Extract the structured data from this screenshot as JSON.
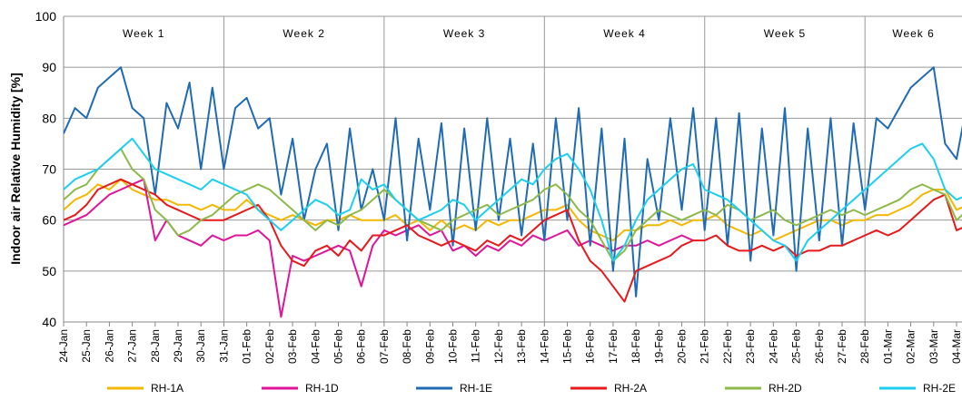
{
  "chart_data": {
    "type": "line",
    "y_label": "Indoor air Relative Humidity [%]",
    "weeks": [
      "Week 1",
      "Week 2",
      "Week 3",
      "Week 4",
      "Week 5",
      "Week 6"
    ],
    "categories": [
      "24-Jan",
      null,
      "25-Jan",
      null,
      "26-Jan",
      null,
      "27-Jan",
      null,
      "28-Jan",
      null,
      "29-Jan",
      null,
      "30-Jan",
      null,
      "31-Jan",
      null,
      "01-Feb",
      null,
      "02-Feb",
      null,
      "03-Feb",
      null,
      "04-Feb",
      null,
      "05-Feb",
      null,
      "06-Feb",
      null,
      "07-Feb",
      null,
      "08-Feb",
      null,
      "09-Feb",
      null,
      "10-Feb",
      null,
      "11-Feb",
      null,
      "12-Feb",
      null,
      "13-Feb",
      null,
      "14-Feb",
      null,
      "15-Feb",
      null,
      "16-Feb",
      null,
      "17-Feb",
      null,
      "18-Feb",
      null,
      "19-Feb",
      null,
      "20-Feb",
      null,
      "21-Feb",
      null,
      "22-Feb",
      null,
      "23-Feb",
      null,
      "24-Feb",
      null,
      "25-Feb",
      null,
      "26-Feb",
      null,
      "27-Feb",
      null,
      "28-Feb",
      null,
      "01-Mar",
      null,
      "02-Mar",
      null,
      "03-Mar",
      null,
      "04-Mar",
      null,
      null
    ],
    "series": [
      {
        "name": "RH-1A",
        "color": "#f5b800",
        "values": [
          62,
          64,
          65,
          67,
          66,
          68,
          66,
          65,
          64,
          64,
          63,
          63,
          62,
          63,
          62,
          62,
          64,
          62,
          61,
          60,
          61,
          60,
          59,
          60,
          60,
          61,
          60,
          60,
          60,
          61,
          59,
          60,
          58,
          60,
          58,
          59,
          58,
          60,
          59,
          60,
          60,
          61,
          62,
          62,
          63,
          60,
          58,
          57,
          56,
          58,
          58,
          59,
          59,
          60,
          59,
          60,
          60,
          61,
          59,
          58,
          57,
          58,
          56,
          57,
          58,
          59,
          60,
          60,
          59,
          60,
          60,
          61,
          61,
          62,
          63,
          65,
          66,
          66,
          62,
          63,
          64
        ]
      },
      {
        "name": "RH-1D",
        "color": "#e0149b",
        "values": [
          59,
          60,
          61,
          63,
          65,
          66,
          67,
          68,
          56,
          60,
          57,
          56,
          55,
          57,
          56,
          57,
          57,
          58,
          56,
          41,
          53,
          52,
          53,
          54,
          55,
          54,
          47,
          55,
          58,
          57,
          58,
          59,
          57,
          58,
          54,
          55,
          53,
          55,
          54,
          56,
          55,
          57,
          56,
          57,
          58,
          55,
          56,
          55,
          54,
          55,
          55,
          56,
          55,
          56,
          57,
          56,
          null,
          null,
          null,
          null,
          null,
          null,
          null,
          null,
          null,
          null,
          null,
          null,
          null,
          null,
          null,
          null,
          null,
          null,
          null,
          null,
          null,
          null,
          null,
          null,
          null
        ]
      },
      {
        "name": "RH-1E",
        "color": "#1f6bb5",
        "values": [
          77,
          82,
          80,
          86,
          88,
          90,
          82,
          80,
          65,
          83,
          78,
          87,
          70,
          86,
          70,
          82,
          84,
          78,
          80,
          65,
          76,
          60,
          70,
          75,
          58,
          78,
          62,
          70,
          60,
          80,
          56,
          76,
          62,
          79,
          55,
          78,
          58,
          80,
          60,
          76,
          57,
          75,
          56,
          80,
          60,
          82,
          55,
          78,
          50,
          76,
          45,
          72,
          60,
          80,
          62,
          82,
          58,
          80,
          55,
          81,
          52,
          78,
          57,
          82,
          50,
          78,
          56,
          80,
          55,
          79,
          62,
          80,
          78,
          82,
          86,
          88,
          90,
          75,
          72,
          84,
          83
        ]
      },
      {
        "name": "RH-2A",
        "color": "#e8191b",
        "values": [
          60,
          61,
          63,
          66,
          67,
          68,
          67,
          66,
          65,
          63,
          62,
          61,
          60,
          60,
          60,
          61,
          62,
          63,
          60,
          55,
          52,
          51,
          54,
          55,
          53,
          56,
          54,
          57,
          57,
          58,
          59,
          57,
          56,
          55,
          56,
          55,
          54,
          56,
          55,
          57,
          56,
          58,
          60,
          61,
          62,
          56,
          52,
          50,
          47,
          44,
          50,
          51,
          52,
          53,
          55,
          56,
          56,
          57,
          55,
          54,
          54,
          55,
          54,
          55,
          53,
          54,
          54,
          55,
          55,
          56,
          57,
          58,
          57,
          58,
          60,
          62,
          64,
          65,
          58,
          59,
          59
        ]
      },
      {
        "name": "RH-2D",
        "color": "#8db94a",
        "values": [
          64,
          66,
          67,
          70,
          72,
          74,
          70,
          68,
          62,
          60,
          57,
          58,
          60,
          61,
          63,
          65,
          66,
          67,
          66,
          64,
          62,
          60,
          58,
          60,
          59,
          61,
          62,
          64,
          66,
          64,
          62,
          60,
          59,
          58,
          60,
          61,
          62,
          63,
          61,
          62,
          63,
          64,
          66,
          67,
          65,
          62,
          60,
          56,
          52,
          54,
          58,
          60,
          62,
          61,
          60,
          61,
          62,
          61,
          63,
          62,
          60,
          61,
          62,
          60,
          59,
          60,
          61,
          62,
          61,
          62,
          61,
          62,
          63,
          64,
          66,
          67,
          66,
          65,
          60,
          62,
          61
        ]
      },
      {
        "name": "RH-2E",
        "color": "#1ccfef",
        "values": [
          66,
          68,
          69,
          70,
          72,
          74,
          76,
          73,
          70,
          69,
          68,
          67,
          66,
          68,
          67,
          66,
          65,
          62,
          60,
          58,
          60,
          62,
          64,
          63,
          61,
          62,
          68,
          66,
          67,
          64,
          62,
          60,
          61,
          62,
          64,
          63,
          60,
          62,
          64,
          66,
          68,
          67,
          70,
          72,
          73,
          70,
          66,
          60,
          52,
          55,
          60,
          64,
          66,
          68,
          70,
          71,
          66,
          65,
          64,
          62,
          60,
          58,
          56,
          55,
          52,
          56,
          58,
          60,
          62,
          64,
          66,
          68,
          70,
          72,
          74,
          75,
          72,
          66,
          64,
          65,
          64
        ]
      }
    ],
    "ylim": [
      40,
      100
    ],
    "yticks": [
      40,
      50,
      60,
      70,
      80,
      90,
      100
    ],
    "grid": true,
    "legend": "bottom"
  }
}
